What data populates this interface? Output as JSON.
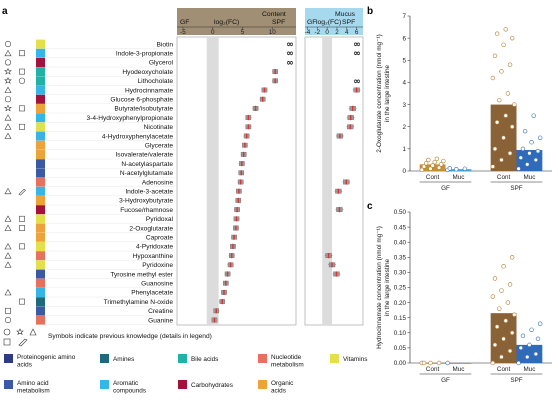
{
  "panel_a": {
    "letter": "a",
    "header_left": {
      "title": "Content",
      "left_label": "GF",
      "right_label": "SPF",
      "axis": "log₂(FC)",
      "ticks": [
        -5,
        0,
        5,
        10
      ]
    },
    "header_right": {
      "title": "Mucus",
      "left_label": "GF",
      "right_label": "SPF",
      "axis": "log₂(FC)",
      "ticks": [
        -4,
        -2,
        0,
        2,
        4,
        6
      ]
    },
    "metabolites": [
      "Biotin",
      "Indole-3-propionate",
      "Glycerol",
      "Hyodeoxycholate",
      "Lithocholate",
      "Hydrocinnamate",
      "Glucose 6-phosphate",
      "Butyrate/isobutyrate",
      "3-4-Hydroxyphenylpropionate",
      "Nicotinate",
      "4-Hydroxyphenylacetate",
      "Glycerate",
      "Isovalerate/valerate",
      "N-acetylaspartate",
      "N-acetylglutamate",
      "Adenosine",
      "Indole-3-acetate",
      "3-Hydroxybutyrate",
      "Fucose/rhamnose",
      "Pyridoxal",
      "2-Oxoglutarate",
      "Caproate",
      "4-Pyridoxate",
      "Hypoxanthine",
      "Pyridoxine",
      "Tyrosine methyl ester",
      "Guanosine",
      "Phenylacetate",
      "Trimethylamine N-oxide",
      "Creatine",
      "Guanine"
    ],
    "infinity_symbol": "∞",
    "symbol_note": "Symbols indicate previous knowledge (details in legend)",
    "legend": [
      {
        "label": "Proteinogenic amino acids",
        "color": "#2e3a87"
      },
      {
        "label": "Amines",
        "color": "#1b6b7c"
      },
      {
        "label": "Bile acids",
        "color": "#20b2a6"
      },
      {
        "label": "Nucleotide metabolism",
        "color": "#e8705e"
      },
      {
        "label": "Vitamins",
        "color": "#e3e04a"
      },
      {
        "label": "Amino acid metabolism",
        "color": "#3a5aa6"
      },
      {
        "label": "Aromatic compounds",
        "color": "#36b6e6"
      },
      {
        "label": "Carbohydrates",
        "color": "#a3123a"
      },
      {
        "label": "Organic acids",
        "color": "#eea33a"
      }
    ]
  },
  "panel_b": {
    "letter": "b",
    "ylabel": "2-Oxoglutarate concentration (nmol mg⁻¹) in the large intestine",
    "group_labels": [
      "GF",
      "SPF"
    ],
    "bar_labels": [
      "Cont",
      "Muc",
      "Cont",
      "Muc"
    ]
  },
  "panel_c": {
    "letter": "c",
    "ylabel": "Hydrocinnamate concentration (nmol mg⁻¹) in the large intestine",
    "group_labels": [
      "GF",
      "SPF"
    ],
    "bar_labels": [
      "Cont",
      "Muc",
      "Cont",
      "Muc"
    ]
  },
  "chart_data": [
    {
      "type": "scatter",
      "panel": "a",
      "title": "Content",
      "xlabel": "log₂(FC)",
      "xlim": [
        -6,
        14
      ],
      "categories": [
        "Biotin",
        "Indole-3-propionate",
        "Glycerol",
        "Hyodeoxycholate",
        "Lithocholate",
        "Hydrocinnamate",
        "Glucose 6-phosphate",
        "Butyrate/isobutyrate",
        "3-4-Hydroxyphenylpropionate",
        "Nicotinate",
        "4-Hydroxyphenylacetate",
        "Glycerate",
        "Isovalerate/valerate",
        "N-acetylaspartate",
        "N-acetylglutamate",
        "Adenosine",
        "Indole-3-acetate",
        "3-Hydroxybutyrate",
        "Fucose/rhamnose",
        "Pyridoxal",
        "2-Oxoglutarate",
        "Caproate",
        "4-Pyridoxate",
        "Hypoxanthine",
        "Pyridoxine",
        "Tyrosine methyl ester",
        "Guanosine",
        "Phenylacetate",
        "Trimethylamine N-oxide",
        "Creatine",
        "Guanine"
      ],
      "values": [
        null,
        null,
        null,
        10.5,
        10.5,
        8.7,
        8.4,
        7.2,
        6.0,
        6.0,
        5.7,
        5.4,
        5.2,
        4.9,
        4.8,
        4.7,
        4.4,
        4.3,
        4.1,
        4.0,
        3.9,
        3.6,
        3.4,
        3.2,
        3.0,
        2.5,
        2.2,
        1.9,
        1.6,
        0.6,
        0.3
      ],
      "infinite": [
        "Biotin",
        "Indole-3-propionate",
        "Glycerol"
      ]
    },
    {
      "type": "scatter",
      "panel": "a",
      "title": "Mucus",
      "xlabel": "log₂(FC)",
      "xlim": [
        -4.5,
        7.3
      ],
      "categories": [
        "Biotin",
        "Indole-3-propionate",
        "Glycerol",
        "Hyodeoxycholate",
        "Lithocholate",
        "Hydrocinnamate",
        "Glucose 6-phosphate",
        "Butyrate/isobutyrate",
        "3-4-Hydroxyphenylpropionate",
        "Nicotinate",
        "4-Hydroxyphenylacetate",
        "Glycerate",
        "Isovalerate/valerate",
        "N-acetylaspartate",
        "N-acetylglutamate",
        "Adenosine",
        "Indole-3-acetate",
        "3-Hydroxybutyrate",
        "Fucose/rhamnose",
        "Pyridoxal",
        "2-Oxoglutarate",
        "Caproate",
        "4-Pyridoxate",
        "Hypoxanthine",
        "Pyridoxine",
        "Tyrosine methyl ester",
        "Guanosine",
        "Phenylacetate",
        "Trimethylamine N-oxide",
        "Creatine",
        "Guanine"
      ],
      "values": [
        null,
        null,
        null,
        null,
        null,
        6.0,
        null,
        5.2,
        4.8,
        4.7,
        2.6,
        null,
        null,
        null,
        null,
        3.9,
        2.3,
        null,
        2.5,
        null,
        null,
        null,
        null,
        0.3,
        1.0,
        1.9,
        null,
        null,
        null,
        null,
        null
      ],
      "infinite": [
        "Biotin",
        "Indole-3-propionate",
        "Lithocholate"
      ]
    },
    {
      "type": "bar",
      "panel": "b",
      "categories": [
        "Cont",
        "Muc",
        "Cont",
        "Muc"
      ],
      "groups": [
        "GF",
        "GF",
        "SPF",
        "SPF"
      ],
      "values": [
        0.3,
        0.08,
        3.0,
        0.95
      ],
      "ylabel": "2-Oxoglutarate concentration (nmol mg⁻¹) in the large intestine",
      "ylim": [
        0,
        7
      ],
      "yticks": [
        0,
        1,
        2,
        3,
        4,
        5,
        6,
        7
      ],
      "colors": [
        "#c8902e",
        "#3aa0d8",
        "#8a6238",
        "#2f6bb8"
      ],
      "points": [
        [
          0.05,
          0.1,
          0.15,
          0.2,
          0.25,
          0.3,
          0.35,
          0.4,
          0.45,
          0.5,
          0.55
        ],
        [
          0.05,
          0.08,
          0.1,
          0.12
        ],
        [
          0.2,
          0.5,
          0.8,
          1.0,
          1.5,
          2.0,
          2.2,
          2.5,
          3.0,
          3.2,
          3.5,
          4.2,
          4.5,
          4.8,
          5.2,
          5.7,
          6.0,
          6.2,
          6.4
        ],
        [
          0.1,
          0.3,
          0.5,
          0.6,
          0.8,
          0.9,
          1.0,
          1.3,
          1.5,
          1.8,
          2.5
        ]
      ]
    },
    {
      "type": "bar",
      "panel": "c",
      "categories": [
        "Cont",
        "Muc",
        "Cont",
        "Muc"
      ],
      "groups": [
        "GF",
        "GF",
        "SPF",
        "SPF"
      ],
      "values": [
        0.0,
        0.0,
        0.165,
        0.06
      ],
      "ylabel": "Hydrocinnamate concentration (nmol mg⁻¹) in the large intestine",
      "ylim": [
        0,
        0.5
      ],
      "yticks": [
        0,
        0.05,
        0.1,
        0.15,
        0.2,
        0.25,
        0.3,
        0.35,
        0.4,
        0.45,
        0.5
      ],
      "colors": [
        "#c8902e",
        "#3aa0d8",
        "#8a6238",
        "#2f6bb8"
      ],
      "points": [
        [
          0.0,
          0.0,
          0.0,
          0.0
        ],
        [
          0.0
        ],
        [
          0.0,
          0.02,
          0.04,
          0.06,
          0.08,
          0.1,
          0.12,
          0.14,
          0.16,
          0.18,
          0.2,
          0.22,
          0.24,
          0.26,
          0.28,
          0.32,
          0.35
        ],
        [
          0.0,
          0.02,
          0.03,
          0.05,
          0.06,
          0.08,
          0.09,
          0.11,
          0.13
        ]
      ]
    }
  ]
}
